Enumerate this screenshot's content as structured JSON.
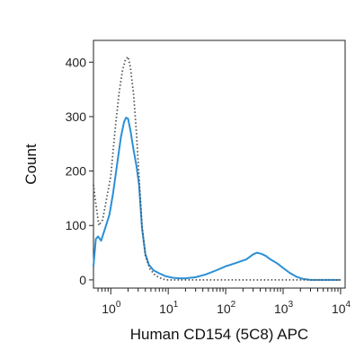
{
  "chart_data": {
    "type": "line",
    "title": "",
    "xlabel": "Human CD154 (5C8) APC",
    "ylabel": "Count",
    "x_scale": "log",
    "xlim": [
      0.5,
      12000
    ],
    "ylim": [
      -15,
      440
    ],
    "grid": false,
    "legend": "none",
    "x_ticks": [
      {
        "value": 1,
        "base": "10",
        "exp": "0"
      },
      {
        "value": 10,
        "base": "10",
        "exp": "1"
      },
      {
        "value": 100,
        "base": "10",
        "exp": "2"
      },
      {
        "value": 1000,
        "base": "10",
        "exp": "3"
      },
      {
        "value": 10000,
        "base": "10",
        "exp": "4"
      }
    ],
    "y_ticks": [
      0,
      100,
      200,
      300,
      400
    ],
    "series": [
      {
        "color": "#2b8fd6",
        "style": "solid",
        "points": [
          [
            0.5,
            25
          ],
          [
            0.55,
            75
          ],
          [
            0.6,
            80
          ],
          [
            0.68,
            72
          ],
          [
            0.8,
            95
          ],
          [
            0.95,
            120
          ],
          [
            1.1,
            160
          ],
          [
            1.3,
            215
          ],
          [
            1.5,
            262
          ],
          [
            1.7,
            290
          ],
          [
            1.85,
            298
          ],
          [
            2.0,
            296
          ],
          [
            2.2,
            275
          ],
          [
            2.5,
            238
          ],
          [
            2.8,
            210
          ],
          [
            3.1,
            175
          ],
          [
            3.5,
            95
          ],
          [
            4.0,
            48
          ],
          [
            4.6,
            28
          ],
          [
            5.5,
            18
          ],
          [
            7,
            12
          ],
          [
            9,
            7
          ],
          [
            12,
            4
          ],
          [
            16,
            3
          ],
          [
            20,
            3
          ],
          [
            30,
            5
          ],
          [
            45,
            10
          ],
          [
            70,
            18
          ],
          [
            100,
            25
          ],
          [
            140,
            30
          ],
          [
            180,
            34
          ],
          [
            230,
            38
          ],
          [
            300,
            47
          ],
          [
            350,
            50
          ],
          [
            420,
            48
          ],
          [
            500,
            44
          ],
          [
            600,
            38
          ],
          [
            800,
            30
          ],
          [
            1000,
            22
          ],
          [
            1300,
            13
          ],
          [
            1700,
            6
          ],
          [
            2200,
            2
          ],
          [
            3000,
            0
          ],
          [
            5000,
            0
          ],
          [
            10000,
            0
          ]
        ]
      },
      {
        "color": "#555555",
        "style": "dotted",
        "points": [
          [
            0.5,
            175
          ],
          [
            0.55,
            140
          ],
          [
            0.62,
            100
          ],
          [
            0.72,
            110
          ],
          [
            0.85,
            150
          ],
          [
            1.0,
            190
          ],
          [
            1.2,
            280
          ],
          [
            1.4,
            345
          ],
          [
            1.6,
            385
          ],
          [
            1.8,
            405
          ],
          [
            2.0,
            410
          ],
          [
            2.2,
            390
          ],
          [
            2.5,
            340
          ],
          [
            2.8,
            270
          ],
          [
            3.1,
            190
          ],
          [
            3.5,
            100
          ],
          [
            4.0,
            45
          ],
          [
            4.8,
            20
          ],
          [
            6,
            8
          ],
          [
            7.5,
            3
          ],
          [
            9,
            0
          ],
          [
            12,
            0
          ],
          [
            20,
            0
          ],
          [
            50,
            0
          ],
          [
            100,
            0
          ],
          [
            1000,
            0
          ],
          [
            10000,
            0
          ]
        ]
      }
    ]
  }
}
